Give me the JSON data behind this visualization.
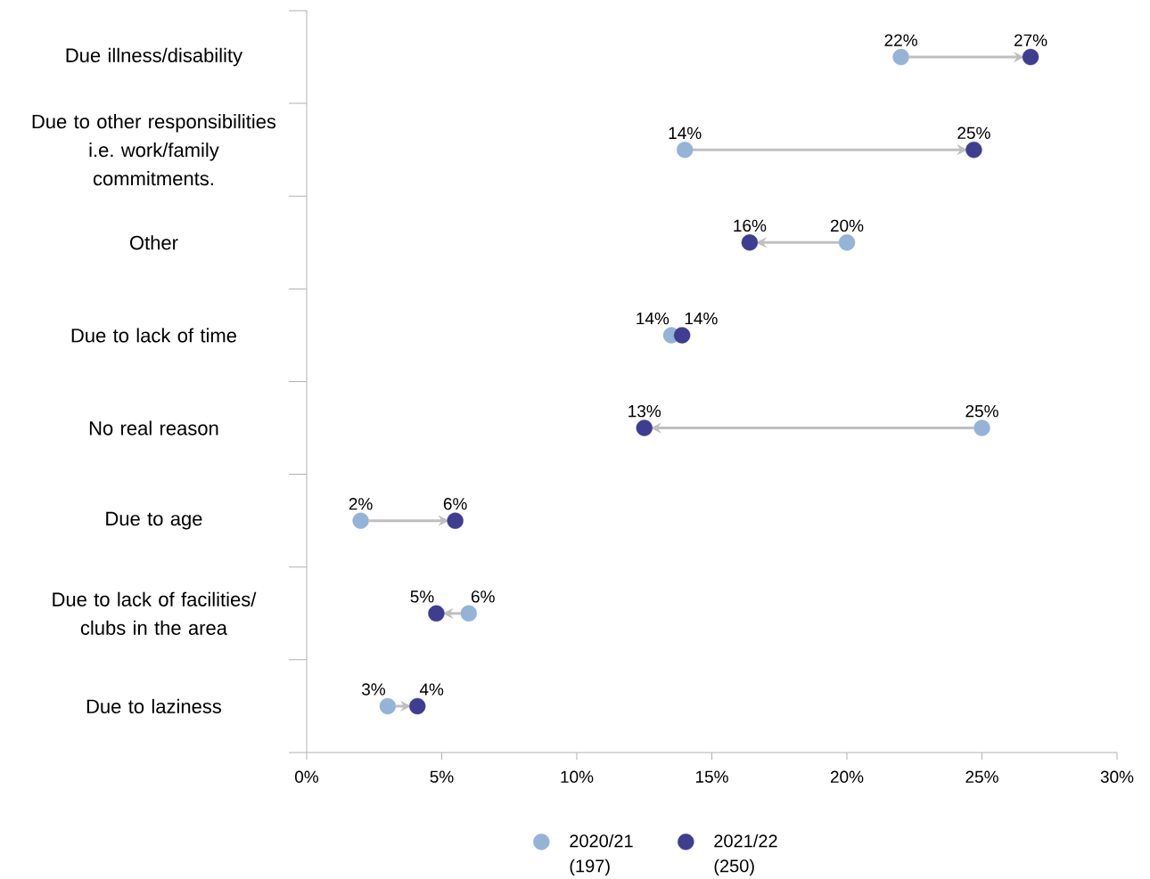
{
  "chart_data": {
    "type": "scatter",
    "orientation": "horizontal",
    "categories": [
      "Due illness/disability",
      "Due to other responsibilities i.e. work/family commitments.",
      "Other",
      "Due to lack of time",
      "No real reason",
      "Due to age",
      "Due to lack of facilities/ clubs in the area",
      "Due to laziness"
    ],
    "series": [
      {
        "name": "2020/21 (197)",
        "color": "#95b3d7",
        "values": [
          22.0,
          14.0,
          20.0,
          13.5,
          25.0,
          2.0,
          6.0,
          3.0
        ],
        "value_labels": [
          "22%",
          "14%",
          "20%",
          "14%",
          "25%",
          "2%",
          "6%",
          "3%"
        ]
      },
      {
        "name": "2021/22 (250)",
        "color": "#3f3d8f",
        "values": [
          26.8,
          24.7,
          16.4,
          13.9,
          12.5,
          5.5,
          4.8,
          4.1
        ],
        "value_labels": [
          "27%",
          "25%",
          "16%",
          "14%",
          "13%",
          "6%",
          "5%",
          "4%"
        ]
      }
    ],
    "xlim": [
      0,
      30
    ],
    "xticks": [
      {
        "value": 0,
        "label": "0%"
      },
      {
        "value": 5,
        "label": "5%"
      },
      {
        "value": 10,
        "label": "10%"
      },
      {
        "value": 15,
        "label": "15%"
      },
      {
        "value": 20,
        "label": "20%"
      },
      {
        "value": 25,
        "label": "25%"
      },
      {
        "value": 30,
        "label": "30%"
      }
    ],
    "marker": "circle",
    "legend": "bottom",
    "grid": false
  }
}
